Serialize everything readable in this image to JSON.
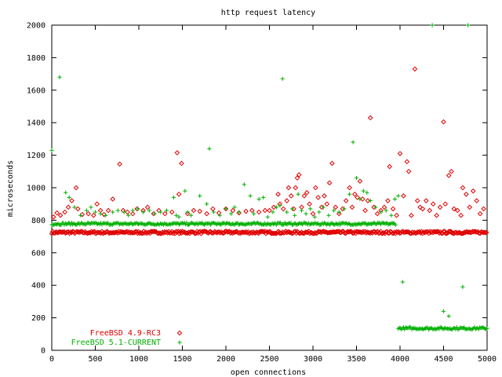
{
  "chart_data": {
    "type": "scatter",
    "title": "http request latency",
    "xlabel": "open connections",
    "ylabel": "microseconds",
    "xlim": [
      0,
      5000
    ],
    "ylim": [
      0,
      2000
    ],
    "xticks": [
      "0",
      "500",
      "1000",
      "1500",
      "2000",
      "2500",
      "3000",
      "3500",
      "4000",
      "4500",
      "5000"
    ],
    "yticks": [
      "0",
      "200",
      "400",
      "600",
      "800",
      "1000",
      "1200",
      "1400",
      "1600",
      "1800",
      "2000"
    ],
    "grid": false,
    "legend_position": "bottom-left",
    "series": [
      {
        "name": "FreeBSD 4.9-RC3",
        "marker": "diamond",
        "color": "#e00000",
        "baseline": {
          "x_range": [
            0,
            5000
          ],
          "y": 725
        },
        "points": [
          [
            20,
            820
          ],
          [
            60,
            845
          ],
          [
            100,
            830
          ],
          [
            150,
            850
          ],
          [
            190,
            880
          ],
          [
            230,
            920
          ],
          [
            280,
            1000
          ],
          [
            300,
            870
          ],
          [
            350,
            835
          ],
          [
            420,
            840
          ],
          [
            480,
            830
          ],
          [
            520,
            900
          ],
          [
            560,
            860
          ],
          [
            600,
            835
          ],
          [
            650,
            860
          ],
          [
            700,
            930
          ],
          [
            780,
            1145
          ],
          [
            820,
            860
          ],
          [
            870,
            850
          ],
          [
            930,
            840
          ],
          [
            980,
            870
          ],
          [
            1050,
            860
          ],
          [
            1100,
            880
          ],
          [
            1170,
            840
          ],
          [
            1230,
            860
          ],
          [
            1300,
            840
          ],
          [
            1380,
            850
          ],
          [
            1440,
            1215
          ],
          [
            1490,
            1150
          ],
          [
            1460,
            960
          ],
          [
            1560,
            840
          ],
          [
            1630,
            860
          ],
          [
            1700,
            855
          ],
          [
            1780,
            840
          ],
          [
            1850,
            870
          ],
          [
            1920,
            845
          ],
          [
            2000,
            870
          ],
          [
            2080,
            860
          ],
          [
            2150,
            845
          ],
          [
            2230,
            855
          ],
          [
            2300,
            860
          ],
          [
            2380,
            850
          ],
          [
            2450,
            860
          ],
          [
            2500,
            860
          ],
          [
            2550,
            880
          ],
          [
            2600,
            960
          ],
          [
            2620,
            900
          ],
          [
            2660,
            870
          ],
          [
            2700,
            920
          ],
          [
            2720,
            1000
          ],
          [
            2750,
            950
          ],
          [
            2780,
            870
          ],
          [
            2800,
            1000
          ],
          [
            2820,
            1060
          ],
          [
            2840,
            1080
          ],
          [
            2870,
            880
          ],
          [
            2900,
            950
          ],
          [
            2930,
            970
          ],
          [
            2960,
            900
          ],
          [
            3000,
            840
          ],
          [
            3030,
            1000
          ],
          [
            3060,
            940
          ],
          [
            3100,
            880
          ],
          [
            3130,
            950
          ],
          [
            3160,
            900
          ],
          [
            3190,
            1030
          ],
          [
            3220,
            1150
          ],
          [
            3260,
            880
          ],
          [
            3300,
            840
          ],
          [
            3340,
            870
          ],
          [
            3380,
            920
          ],
          [
            3420,
            1000
          ],
          [
            3450,
            880
          ],
          [
            3480,
            960
          ],
          [
            3510,
            940
          ],
          [
            3540,
            1040
          ],
          [
            3570,
            930
          ],
          [
            3600,
            860
          ],
          [
            3630,
            920
          ],
          [
            3660,
            1430
          ],
          [
            3700,
            880
          ],
          [
            3740,
            840
          ],
          [
            3780,
            860
          ],
          [
            3820,
            880
          ],
          [
            3860,
            920
          ],
          [
            3880,
            1130
          ],
          [
            3920,
            870
          ],
          [
            3960,
            830
          ],
          [
            4000,
            1210
          ],
          [
            4040,
            950
          ],
          [
            4080,
            1160
          ],
          [
            4100,
            1100
          ],
          [
            4130,
            830
          ],
          [
            4170,
            1730
          ],
          [
            4200,
            920
          ],
          [
            4230,
            880
          ],
          [
            4260,
            870
          ],
          [
            4300,
            920
          ],
          [
            4340,
            860
          ],
          [
            4380,
            900
          ],
          [
            4420,
            830
          ],
          [
            4460,
            880
          ],
          [
            4500,
            1405
          ],
          [
            4520,
            900
          ],
          [
            4560,
            1075
          ],
          [
            4590,
            1100
          ],
          [
            4620,
            870
          ],
          [
            4660,
            860
          ],
          [
            4700,
            830
          ],
          [
            4720,
            1000
          ],
          [
            4760,
            960
          ],
          [
            4800,
            880
          ],
          [
            4840,
            980
          ],
          [
            4880,
            920
          ],
          [
            4920,
            840
          ],
          [
            4960,
            870
          ]
        ]
      },
      {
        "name": "FreeBSD 5.1-CURRENT",
        "marker": "plus",
        "color": "#00b000",
        "baselines": [
          {
            "x_range": [
              0,
              3950
            ],
            "y": 778
          },
          {
            "x_range": [
              3980,
              5000
            ],
            "y": 135
          }
        ],
        "points": [
          [
            0,
            1230
          ],
          [
            90,
            1680
          ],
          [
            160,
            970
          ],
          [
            200,
            940
          ],
          [
            260,
            880
          ],
          [
            330,
            830
          ],
          [
            400,
            860
          ],
          [
            450,
            880
          ],
          [
            500,
            850
          ],
          [
            560,
            840
          ],
          [
            620,
            830
          ],
          [
            700,
            850
          ],
          [
            760,
            860
          ],
          [
            830,
            850
          ],
          [
            880,
            830
          ],
          [
            930,
            860
          ],
          [
            990,
            870
          ],
          [
            1050,
            850
          ],
          [
            1120,
            860
          ],
          [
            1180,
            840
          ],
          [
            1250,
            850
          ],
          [
            1320,
            860
          ],
          [
            1400,
            940
          ],
          [
            1430,
            830
          ],
          [
            1460,
            820
          ],
          [
            1530,
            980
          ],
          [
            1560,
            850
          ],
          [
            1600,
            830
          ],
          [
            1700,
            950
          ],
          [
            1780,
            900
          ],
          [
            1810,
            1240
          ],
          [
            1860,
            850
          ],
          [
            1930,
            830
          ],
          [
            2000,
            870
          ],
          [
            2060,
            840
          ],
          [
            2100,
            880
          ],
          [
            2150,
            850
          ],
          [
            2210,
            1020
          ],
          [
            2280,
            950
          ],
          [
            2320,
            840
          ],
          [
            2380,
            930
          ],
          [
            2430,
            940
          ],
          [
            2480,
            820
          ],
          [
            2540,
            850
          ],
          [
            2580,
            880
          ],
          [
            2620,
            890
          ],
          [
            2650,
            1670
          ],
          [
            2700,
            850
          ],
          [
            2760,
            870
          ],
          [
            2790,
            830
          ],
          [
            2830,
            960
          ],
          [
            2870,
            860
          ],
          [
            2920,
            840
          ],
          [
            2970,
            870
          ],
          [
            3020,
            820
          ],
          [
            3070,
            850
          ],
          [
            3120,
            880
          ],
          [
            3180,
            830
          ],
          [
            3240,
            860
          ],
          [
            3300,
            850
          ],
          [
            3360,
            870
          ],
          [
            3420,
            960
          ],
          [
            3460,
            1280
          ],
          [
            3500,
            1060
          ],
          [
            3540,
            930
          ],
          [
            3580,
            980
          ],
          [
            3620,
            970
          ],
          [
            3660,
            920
          ],
          [
            3720,
            880
          ],
          [
            3780,
            850
          ],
          [
            3840,
            860
          ],
          [
            3900,
            830
          ],
          [
            3940,
            930
          ],
          [
            3980,
            950
          ],
          [
            4030,
            420
          ],
          [
            4370,
            2000
          ],
          [
            4500,
            240
          ],
          [
            4560,
            210
          ],
          [
            4720,
            390
          ],
          [
            4780,
            2000
          ]
        ]
      }
    ]
  }
}
